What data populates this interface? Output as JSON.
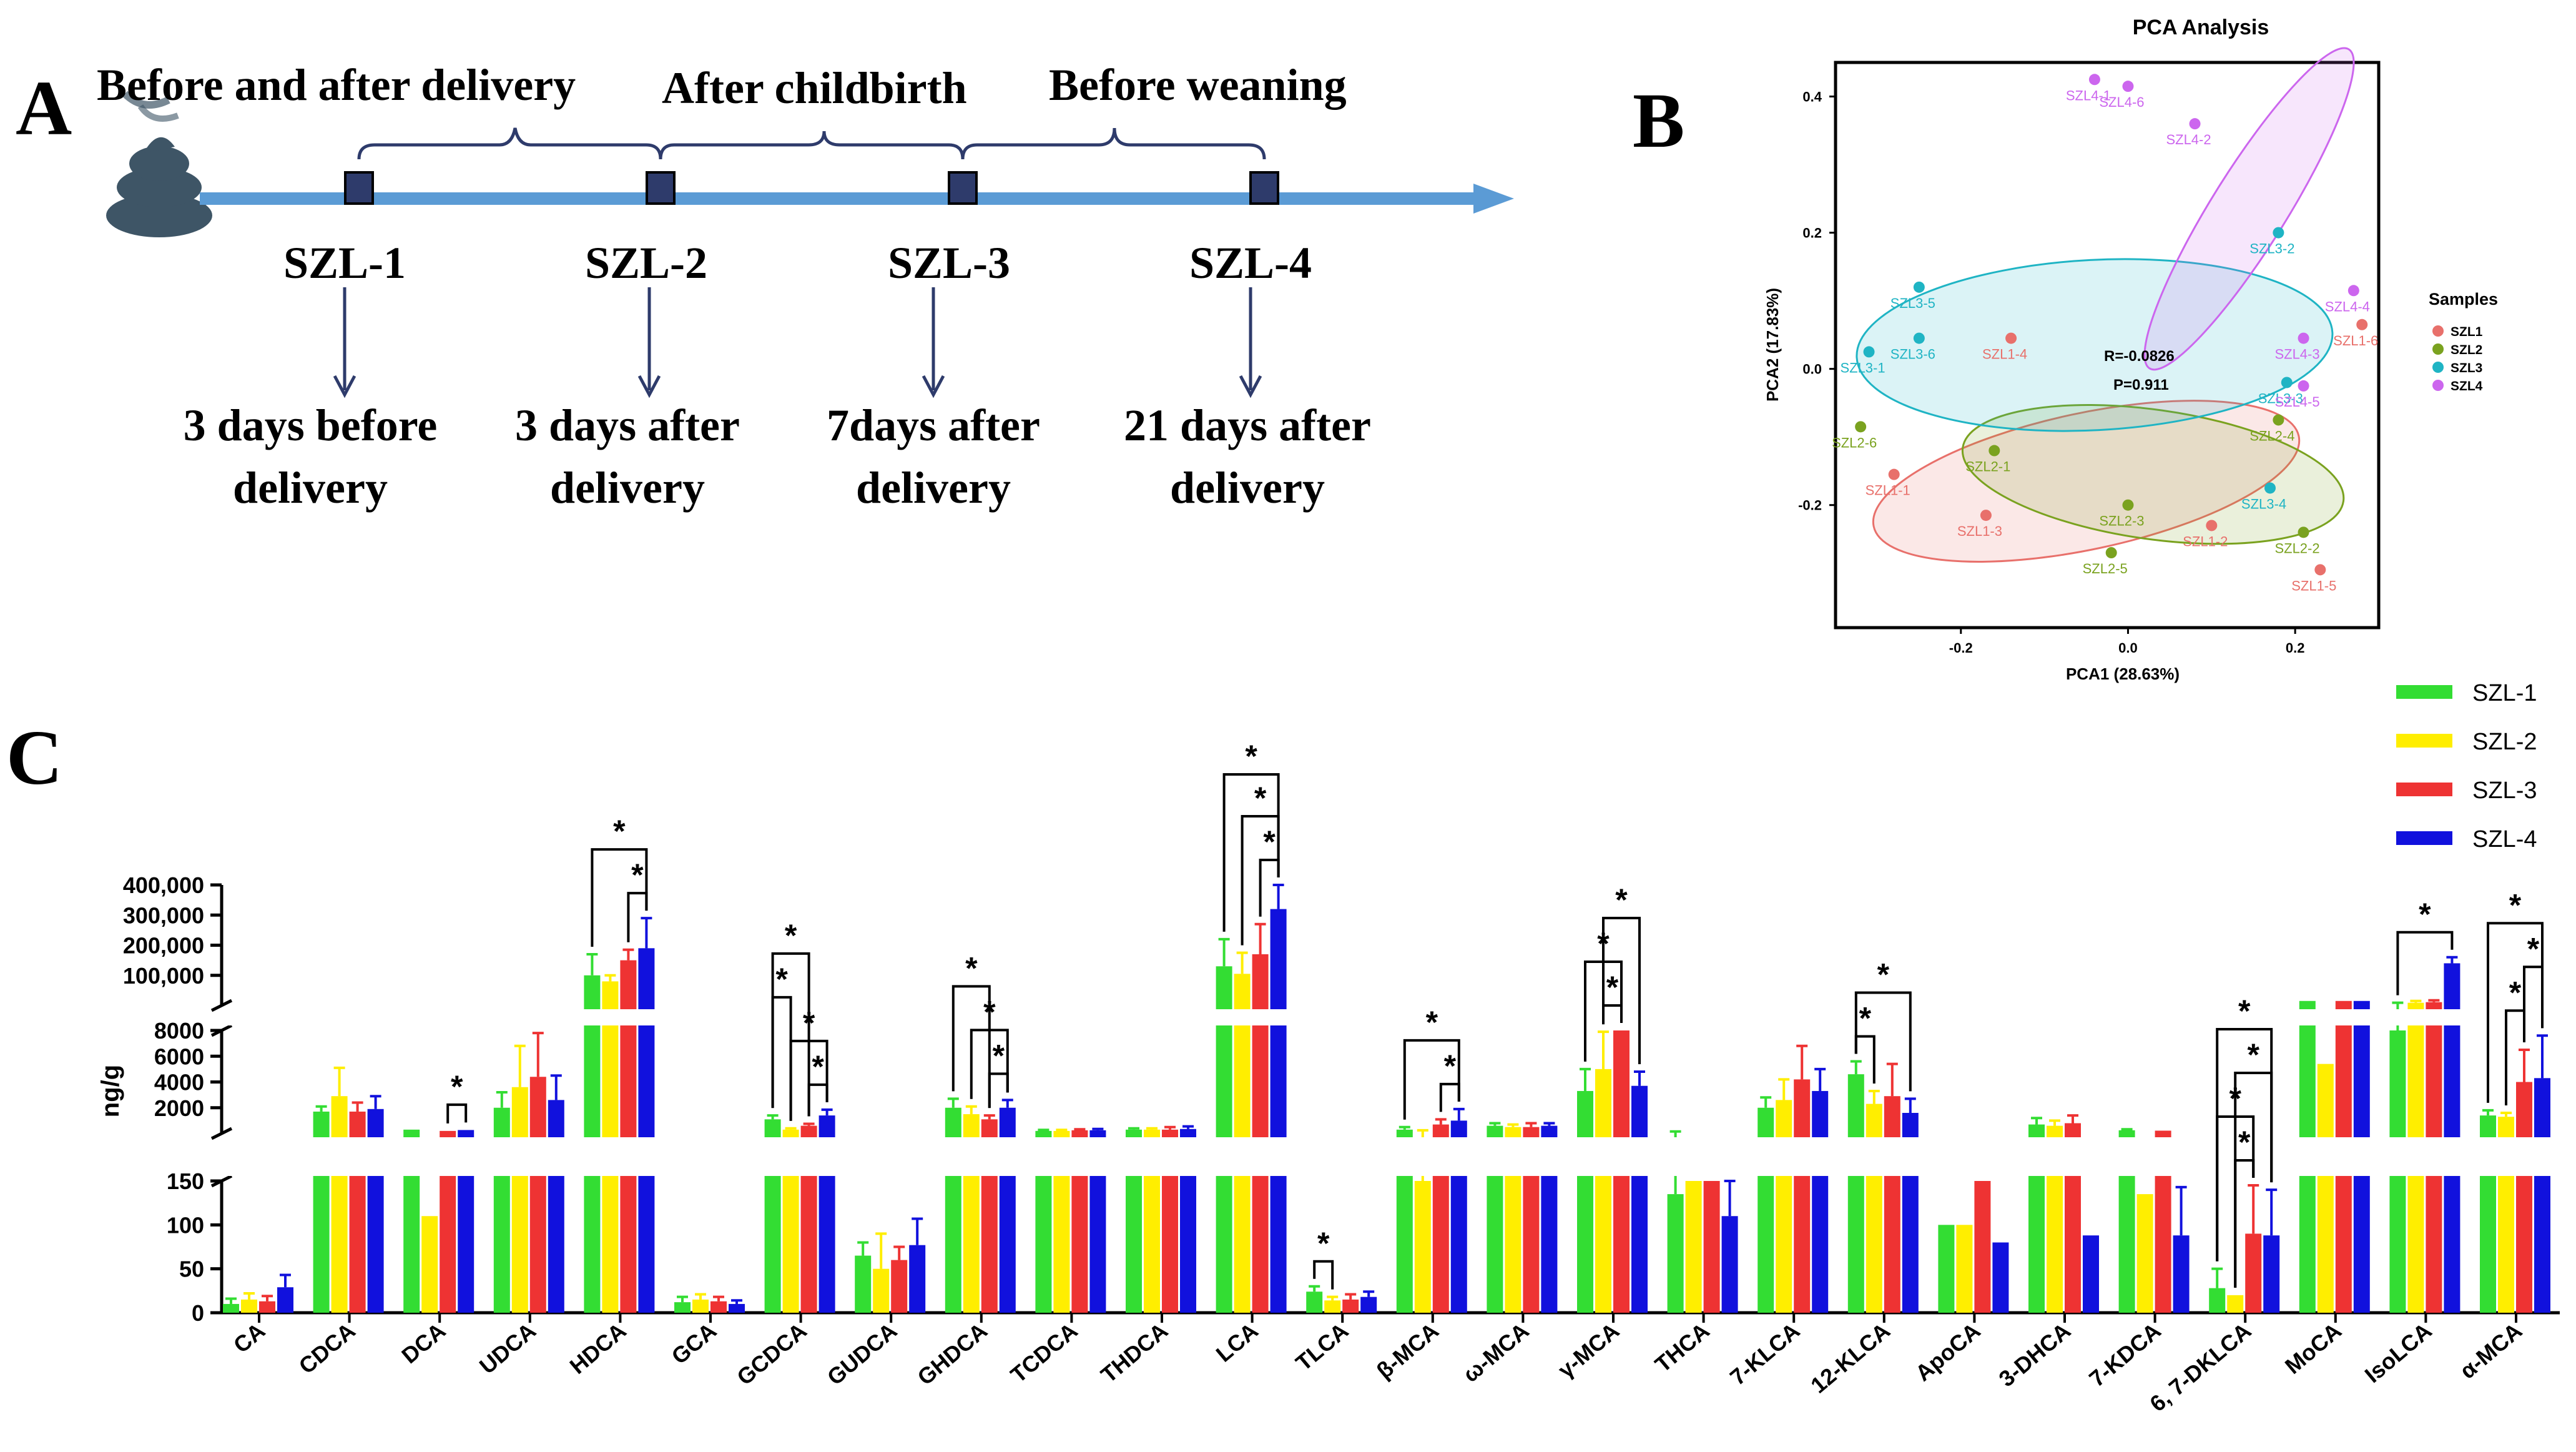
{
  "panel_letters": {
    "a": "A",
    "b": "B",
    "c": "C"
  },
  "timeline": {
    "periods": [
      "Before and after delivery",
      "After childbirth",
      "Before weaning"
    ],
    "stages": [
      {
        "label": "SZL-1",
        "desc1": "3 days before",
        "desc2": "delivery"
      },
      {
        "label": "SZL-2",
        "desc1": "3 days after",
        "desc2": "delivery"
      },
      {
        "label": "SZL-3",
        "desc1": "7days after",
        "desc2": "delivery"
      },
      {
        "label": "SZL-4",
        "desc1": "21 days after",
        "desc2": "delivery"
      }
    ],
    "colors": {
      "arrow": "#5b9bd5",
      "marker": "#2e3b6b",
      "icon": "#3e5566"
    }
  },
  "chart_data": [
    {
      "type": "scatter",
      "title": "PCA Analysis",
      "xlabel": "PCA1 (28.63%)",
      "ylabel": "PCA2 (17.83%)",
      "xlim": [
        -0.35,
        0.3
      ],
      "ylim": [
        -0.38,
        0.45
      ],
      "xticks": [
        "-0.2",
        "0.0",
        "0.2"
      ],
      "xtick_values": [
        -0.2,
        0.0,
        0.2
      ],
      "yticks": [
        "-0.2",
        "0.0",
        "0.2",
        "0.4"
      ],
      "ytick_values": [
        -0.2,
        0.0,
        0.2,
        0.4
      ],
      "stats": [
        "R=-0.0826",
        "P=0.911"
      ],
      "legend_title": "Samples",
      "series": [
        {
          "name": "SZL1",
          "color": "#e8706b",
          "points": [
            {
              "label": "SZL1-1",
              "x": -0.28,
              "y": -0.155
            },
            {
              "label": "SZL1-2",
              "x": 0.1,
              "y": -0.23
            },
            {
              "label": "SZL1-3",
              "x": -0.17,
              "y": -0.215
            },
            {
              "label": "SZL1-4",
              "x": -0.14,
              "y": 0.045
            },
            {
              "label": "SZL1-5",
              "x": 0.23,
              "y": -0.295
            },
            {
              "label": "SZL1-6",
              "x": 0.28,
              "y": 0.065
            }
          ]
        },
        {
          "name": "SZL2",
          "color": "#7aa21f",
          "points": [
            {
              "label": "SZL2-1",
              "x": -0.16,
              "y": -0.12
            },
            {
              "label": "SZL2-2",
              "x": 0.21,
              "y": -0.24
            },
            {
              "label": "SZL2-3",
              "x": 0.0,
              "y": -0.2
            },
            {
              "label": "SZL2-4",
              "x": 0.18,
              "y": -0.075
            },
            {
              "label": "SZL2-5",
              "x": -0.02,
              "y": -0.27
            },
            {
              "label": "SZL2-6",
              "x": -0.32,
              "y": -0.085
            }
          ]
        },
        {
          "name": "SZL3",
          "color": "#1fb4c4",
          "points": [
            {
              "label": "SZL3-1",
              "x": -0.31,
              "y": 0.025
            },
            {
              "label": "SZL3-2",
              "x": 0.18,
              "y": 0.2
            },
            {
              "label": "SZL3-3",
              "x": 0.19,
              "y": -0.02
            },
            {
              "label": "SZL3-4",
              "x": 0.17,
              "y": -0.175
            },
            {
              "label": "SZL3-5",
              "x": -0.25,
              "y": 0.12
            },
            {
              "label": "SZL3-6",
              "x": -0.25,
              "y": 0.045
            }
          ]
        },
        {
          "name": "SZL4",
          "color": "#cc66ee",
          "points": [
            {
              "label": "SZL4-1",
              "x": -0.04,
              "y": 0.425
            },
            {
              "label": "SZL4-2",
              "x": 0.08,
              "y": 0.36
            },
            {
              "label": "SZL4-3",
              "x": 0.21,
              "y": 0.045
            },
            {
              "label": "SZL4-4",
              "x": 0.27,
              "y": 0.115
            },
            {
              "label": "SZL4-5",
              "x": 0.21,
              "y": -0.025
            },
            {
              "label": "SZL4-6",
              "x": 0.0,
              "y": 0.415
            }
          ]
        }
      ],
      "ellipses": [
        {
          "group": "SZL1",
          "cx": -0.05,
          "cy": -0.165,
          "rx": 0.26,
          "ry": 0.1,
          "angle": -12
        },
        {
          "group": "SZL2",
          "cx": 0.03,
          "cy": -0.155,
          "rx": 0.23,
          "ry": 0.095,
          "angle": 8
        },
        {
          "group": "SZL3",
          "cx": -0.04,
          "cy": 0.035,
          "rx": 0.285,
          "ry": 0.125,
          "angle": -3
        },
        {
          "group": "SZL4",
          "cx": 0.145,
          "cy": 0.235,
          "rx": 0.225,
          "ry": 0.055,
          "angle": -58
        }
      ]
    },
    {
      "type": "bar",
      "ylabel": "ng/g",
      "categories": [
        "CA",
        "CDCA",
        "DCA",
        "UDCA",
        "HDCA",
        "GCA",
        "GCDCA",
        "GUDCA",
        "GHDCA",
        "TCDCA",
        "THDCA",
        "LCA",
        "TLCA",
        "β-MCA",
        "ω-MCA",
        "γ-MCA",
        "THCA",
        "7-KLCA",
        "12-KLCA",
        "ApoCA",
        "3-DHCA",
        "7-KDCA",
        "6, 7-DKLCA",
        "MoCA",
        "IsoLCA",
        "α-MCA"
      ],
      "y_segments": [
        {
          "range": [
            0,
            150
          ],
          "ticks": [
            0,
            50,
            100,
            150
          ],
          "tick_labels": [
            "0",
            "50",
            "100",
            "150"
          ]
        },
        {
          "range": [
            0,
            8000
          ],
          "ticks": [
            2000,
            4000,
            6000,
            8000
          ],
          "tick_labels": [
            "2000",
            "4000",
            "6000",
            "8000"
          ]
        },
        {
          "range": [
            0,
            400000
          ],
          "ticks": [
            100000,
            200000,
            300000,
            400000
          ],
          "tick_labels": [
            "100,000",
            "200,000",
            "300,000",
            "400,000"
          ]
        }
      ],
      "series": [
        {
          "name": "SZL-1",
          "color": "#33dd33",
          "values": [
            10,
            1700,
            300,
            2000,
            100000,
            12,
            1100,
            65,
            2000,
            200,
            300,
            130000,
            24,
            300,
            600,
            3300,
            135,
            2000,
            4600,
            100,
            700,
            250,
            28,
            15000,
            8000,
            1400
          ],
          "errors": [
            6,
            400,
            0,
            1200,
            70000,
            6,
            300,
            15,
            700,
            80,
            100,
            90000,
            6,
            200,
            200,
            1700,
            20,
            800,
            1000,
            0,
            500,
            80,
            22,
            0,
            1000,
            400
          ]
        },
        {
          "name": "SZL-2",
          "color": "#ffee00",
          "values": [
            15,
            2900,
            110,
            3600,
            80000,
            15,
            300,
            50,
            1500,
            200,
            300,
            105000,
            14,
            150,
            500,
            5000,
            150,
            2600,
            2300,
            100,
            600,
            135,
            20,
            5400,
            9000,
            1300
          ],
          "errors": [
            7,
            2200,
            0,
            3200,
            20000,
            6,
            100,
            40,
            600,
            80,
            100,
            70000,
            4,
            100,
            200,
            2900,
            0,
            1600,
            1000,
            0,
            400,
            0,
            0,
            0,
            6000,
            300
          ]
        },
        {
          "name": "SZL-3",
          "color": "#ee3333",
          "values": [
            13,
            1700,
            200,
            4400,
            150000,
            13,
            600,
            60,
            1100,
            250,
            300,
            170000,
            15,
            700,
            500,
            8000,
            150,
            4200,
            2900,
            150,
            800,
            220,
            90,
            15000,
            11000,
            4000
          ],
          "errors": [
            6,
            700,
            0,
            3400,
            35000,
            5,
            150,
            15,
            300,
            80,
            200,
            100000,
            6,
            400,
            300,
            0,
            0,
            2600,
            2500,
            0,
            600,
            0,
            55,
            0,
            6000,
            2500
          ]
        },
        {
          "name": "SZL-4",
          "color": "#1111dd",
          "values": [
            29,
            1900,
            270,
            2600,
            190000,
            10,
            1400,
            77,
            2000,
            250,
            350,
            320000,
            18,
            1000,
            600,
            3700,
            110,
            3300,
            1600,
            80,
            88,
            88,
            88,
            15000,
            140000,
            4300
          ],
          "errors": [
            14,
            1000,
            0,
            1900,
            100000,
            4,
            450,
            30,
            600,
            100,
            200,
            120000,
            6,
            900,
            200,
            1100,
            40,
            1700,
            1100,
            0,
            0,
            55,
            52,
            0,
            20000,
            3300
          ]
        }
      ],
      "significance": "*",
      "brackets": [
        {
          "cat": 2,
          "from": 2,
          "to": 3,
          "level": 0
        },
        {
          "cat": 4,
          "from": 0,
          "to": 3,
          "level": 1
        },
        {
          "cat": 4,
          "from": 2,
          "to": 3,
          "level": 0
        },
        {
          "cat": 6,
          "from": 0,
          "to": 2,
          "level": 3
        },
        {
          "cat": 6,
          "from": 0,
          "to": 1,
          "level": 2
        },
        {
          "cat": 6,
          "from": 1,
          "to": 3,
          "level": 1
        },
        {
          "cat": 6,
          "from": 2,
          "to": 3,
          "level": 0
        },
        {
          "cat": 8,
          "from": 0,
          "to": 2,
          "level": 2
        },
        {
          "cat": 8,
          "from": 1,
          "to": 3,
          "level": 1
        },
        {
          "cat": 8,
          "from": 2,
          "to": 3,
          "level": 0
        },
        {
          "cat": 11,
          "from": 0,
          "to": 3,
          "level": 2
        },
        {
          "cat": 11,
          "from": 1,
          "to": 3,
          "level": 1
        },
        {
          "cat": 11,
          "from": 2,
          "to": 3,
          "level": 0
        },
        {
          "cat": 12,
          "from": 0,
          "to": 1,
          "level": 0
        },
        {
          "cat": 13,
          "from": 0,
          "to": 3,
          "level": 1
        },
        {
          "cat": 13,
          "from": 2,
          "to": 3,
          "level": 0
        },
        {
          "cat": 15,
          "from": 0,
          "to": 2,
          "level": 1
        },
        {
          "cat": 15,
          "from": 1,
          "to": 2,
          "level": 0
        },
        {
          "cat": 15,
          "from": 1,
          "to": 3,
          "level": 2
        },
        {
          "cat": 18,
          "from": 0,
          "to": 1,
          "level": 0
        },
        {
          "cat": 18,
          "from": 0,
          "to": 3,
          "level": 1
        },
        {
          "cat": 22,
          "from": 0,
          "to": 3,
          "level": 3
        },
        {
          "cat": 22,
          "from": 1,
          "to": 3,
          "level": 2
        },
        {
          "cat": 22,
          "from": 0,
          "to": 2,
          "level": 1
        },
        {
          "cat": 22,
          "from": 1,
          "to": 2,
          "level": 0
        },
        {
          "cat": 24,
          "from": 0,
          "to": 3,
          "level": 0
        },
        {
          "cat": 25,
          "from": 0,
          "to": 3,
          "level": 2
        },
        {
          "cat": 25,
          "from": 2,
          "to": 3,
          "level": 1
        },
        {
          "cat": 25,
          "from": 1,
          "to": 2,
          "level": 0
        }
      ]
    }
  ]
}
